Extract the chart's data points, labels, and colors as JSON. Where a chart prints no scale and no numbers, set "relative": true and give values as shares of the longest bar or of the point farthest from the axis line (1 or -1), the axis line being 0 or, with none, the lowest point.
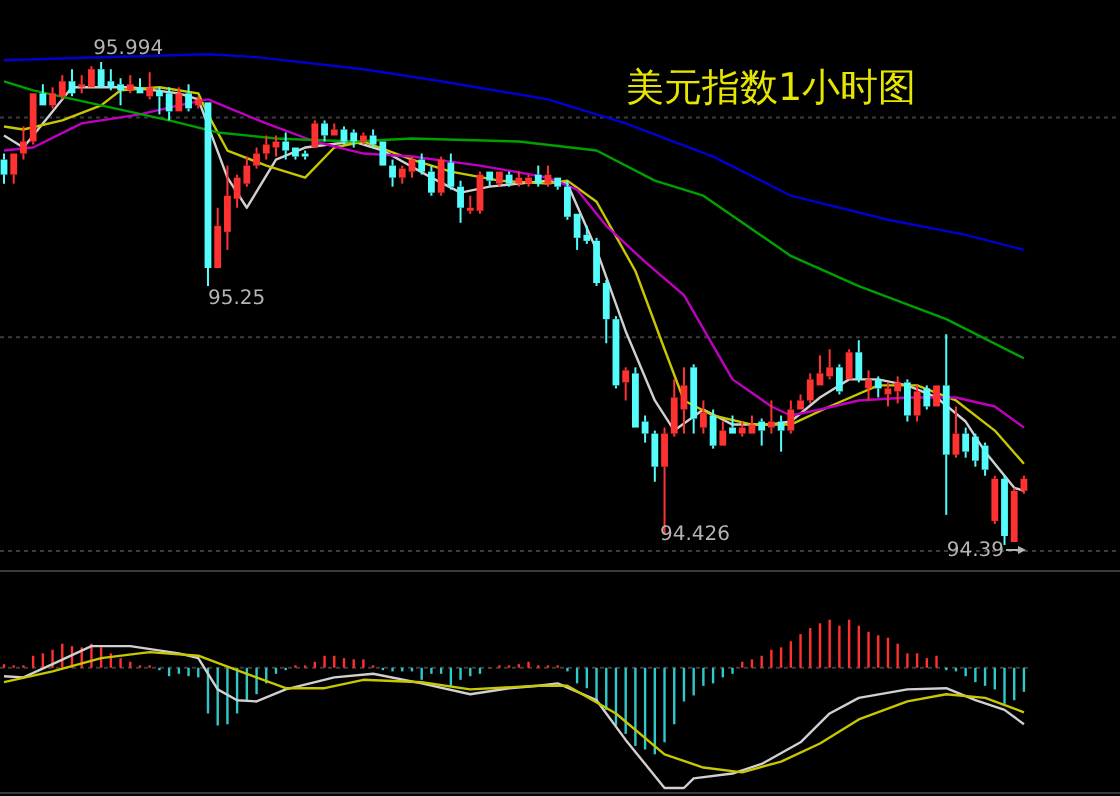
{
  "chart_data": [
    {
      "type": "candlestick",
      "title": "美元指数1小时图",
      "tick_labels": false,
      "grid": "y",
      "yticks": [
        {
          "value": 95.81,
          "label": null
        },
        {
          "value": 95.08,
          "label": null
        },
        {
          "value": 94.37,
          "label": null
        }
      ],
      "colors": [
        "#54fcfc",
        "#ff3232",
        "#ff3232",
        "#ff3232",
        "#54fcfc",
        "#ff3232",
        "#ff3232",
        "#54fcfc",
        "#ff3232",
        "#ff3232",
        "#54fcfc",
        "#54fcfc",
        "#54fcfc",
        "#ff3232",
        "#54fcfc",
        "#ff3232",
        "#54fcfc",
        "#54fcfc",
        "#ff3232",
        "#54fcfc",
        "#ff3232",
        "#54fcfc",
        "#ff3232",
        "#ff3232",
        "#ff3232",
        "#ff3232",
        "#ff3232",
        "#ff3232",
        "#ff3232",
        "#54fcfc",
        "#54fcfc",
        "#54fcfc",
        "#ff3232",
        "#54fcfc",
        "#ff3232",
        "#54fcfc",
        "#54fcfc",
        "#ff3232",
        "#54fcfc",
        "#54fcfc",
        "#54fcfc",
        "#ff3232",
        "#ff3232",
        "#54fcfc",
        "#54fcfc",
        "#ff3232",
        "#54fcfc",
        "#54fcfc",
        "#ff3232",
        "#ff3232",
        "#54fcfc",
        "#ff3232",
        "#54fcfc",
        "#ff3232",
        "#ff3232",
        "#54fcfc",
        "#ff3232",
        "#54fcfc",
        "#54fcfc",
        "#54fcfc",
        "#54fcfc",
        "#54fcfc",
        "#54fcfc",
        "#54fcfc",
        "#ff3232",
        "#54fcfc",
        "#54fcfc",
        "#54fcfc",
        "#ff3232",
        "#ff3232",
        "#ff3232",
        "#54fcfc",
        "#ff3232",
        "#54fcfc",
        "#ff3232",
        "#54fcfc",
        "#ff3232",
        "#ff3232",
        "#54fcfc",
        "#ff3232",
        "#54fcfc",
        "#ff3232",
        "#ff3232",
        "#ff3232",
        "#ff3232",
        "#ff3232",
        "#54fcfc",
        "#ff3232",
        "#54fcfc",
        "#ff3232",
        "#54fcfc",
        "#ff3232",
        "#ff3232",
        "#54fcfc",
        "#ff3232",
        "#54fcfc",
        "#ff3232",
        "#54fcfc",
        "#ff3232",
        "#54fcfc",
        "#54fcfc",
        "#54fcfc",
        "#ff3232",
        "#54fcfc",
        "#ff3232",
        "#ff3232"
      ],
      "categories": [
        null,
        null,
        null,
        null,
        null,
        null,
        null,
        null,
        null,
        null,
        null,
        null,
        null,
        null,
        null,
        null,
        null,
        null,
        null,
        null,
        null,
        null,
        null,
        null,
        null,
        null,
        null,
        null,
        null,
        null,
        null,
        null,
        null,
        null,
        null,
        null,
        null,
        null,
        null,
        null,
        null,
        null,
        null,
        null,
        null,
        null,
        null,
        null,
        null,
        null,
        null,
        null,
        null,
        null,
        null,
        null,
        null,
        null,
        null,
        null,
        null,
        null,
        null,
        null,
        null,
        null,
        null,
        null,
        null,
        null,
        null,
        null,
        null,
        null,
        null,
        null,
        null,
        null,
        null,
        null,
        null,
        null,
        null,
        null,
        null,
        null,
        null,
        null,
        null,
        null,
        null,
        null,
        null,
        null,
        null,
        null,
        null,
        null,
        null,
        null,
        null,
        null,
        null,
        null,
        null,
        null
      ],
      "ohlc": [
        [
          95.67,
          95.69,
          95.59,
          95.62
        ],
        [
          95.62,
          95.69,
          95.59,
          95.69
        ],
        [
          95.69,
          95.78,
          95.67,
          95.73
        ],
        [
          95.73,
          95.89,
          95.72,
          95.89
        ],
        [
          95.89,
          95.92,
          95.85,
          95.85
        ],
        [
          95.85,
          95.91,
          95.84,
          95.89
        ],
        [
          95.88,
          95.95,
          95.87,
          95.93
        ],
        [
          95.93,
          95.97,
          95.88,
          95.89
        ],
        [
          95.91,
          95.95,
          95.89,
          95.92
        ],
        [
          95.91,
          95.98,
          95.91,
          95.97
        ],
        [
          95.97,
          95.994,
          95.91,
          95.91
        ],
        [
          95.93,
          95.97,
          95.9,
          95.91
        ],
        [
          95.92,
          95.94,
          95.85,
          95.9
        ],
        [
          95.9,
          95.95,
          95.89,
          95.92
        ],
        [
          95.91,
          95.94,
          95.89,
          95.89
        ],
        [
          95.88,
          95.96,
          95.87,
          95.91
        ],
        [
          95.9,
          95.91,
          95.82,
          95.88
        ],
        [
          95.89,
          95.91,
          95.8,
          95.83
        ],
        [
          95.83,
          95.91,
          95.83,
          95.89
        ],
        [
          95.89,
          95.92,
          95.83,
          95.84
        ],
        [
          95.85,
          95.88,
          95.84,
          95.87
        ],
        [
          95.86,
          95.86,
          95.25,
          95.31
        ],
        [
          95.31,
          95.51,
          95.31,
          95.45
        ],
        [
          95.43,
          95.65,
          95.37,
          95.55
        ],
        [
          95.54,
          95.62,
          95.51,
          95.61
        ],
        [
          95.59,
          95.68,
          95.58,
          95.65
        ],
        [
          95.65,
          95.71,
          95.64,
          95.69
        ],
        [
          95.69,
          95.75,
          95.67,
          95.72
        ],
        [
          95.71,
          95.75,
          95.68,
          95.73
        ],
        [
          95.73,
          95.76,
          95.67,
          95.7
        ],
        [
          95.71,
          95.71,
          95.67,
          95.68
        ],
        [
          95.69,
          95.7,
          95.67,
          95.68
        ],
        [
          95.71,
          95.8,
          95.71,
          95.79
        ],
        [
          95.79,
          95.8,
          95.73,
          95.75
        ],
        [
          95.75,
          95.79,
          95.75,
          95.77
        ],
        [
          95.77,
          95.78,
          95.72,
          95.73
        ],
        [
          95.76,
          95.77,
          95.71,
          95.73
        ],
        [
          95.73,
          95.76,
          95.72,
          95.75
        ],
        [
          95.75,
          95.77,
          95.71,
          95.72
        ],
        [
          95.73,
          95.73,
          95.65,
          95.65
        ],
        [
          95.65,
          95.67,
          95.58,
          95.61
        ],
        [
          95.61,
          95.65,
          95.59,
          95.64
        ],
        [
          95.63,
          95.68,
          95.61,
          95.67
        ],
        [
          95.67,
          95.69,
          95.62,
          95.63
        ],
        [
          95.63,
          95.65,
          95.55,
          95.56
        ],
        [
          95.56,
          95.68,
          95.55,
          95.67
        ],
        [
          95.66,
          95.69,
          95.57,
          95.58
        ],
        [
          95.58,
          95.6,
          95.46,
          95.51
        ],
        [
          95.5,
          95.55,
          95.49,
          95.51
        ],
        [
          95.5,
          95.63,
          95.49,
          95.62
        ],
        [
          95.63,
          95.63,
          95.58,
          95.6
        ],
        [
          95.59,
          95.63,
          95.58,
          95.63
        ],
        [
          95.62,
          95.63,
          95.58,
          95.59
        ],
        [
          95.59,
          95.63,
          95.58,
          95.61
        ],
        [
          95.59,
          95.62,
          95.58,
          95.61
        ],
        [
          95.62,
          95.65,
          95.58,
          95.59
        ],
        [
          95.59,
          95.65,
          95.58,
          95.62
        ],
        [
          95.61,
          95.61,
          95.57,
          95.58
        ],
        [
          95.58,
          95.6,
          95.47,
          95.48
        ],
        [
          95.49,
          95.49,
          95.37,
          95.41
        ],
        [
          95.42,
          95.45,
          95.39,
          95.4
        ],
        [
          95.4,
          95.41,
          95.25,
          95.26
        ],
        [
          95.26,
          95.27,
          95.06,
          95.14
        ],
        [
          95.14,
          95.15,
          94.91,
          94.92
        ],
        [
          94.93,
          94.98,
          94.87,
          94.97
        ],
        [
          94.96,
          94.98,
          94.78,
          94.78
        ],
        [
          94.8,
          94.82,
          94.73,
          94.76
        ],
        [
          94.76,
          94.77,
          94.6,
          94.65
        ],
        [
          94.65,
          94.78,
          94.426,
          94.76
        ],
        [
          94.76,
          94.94,
          94.75,
          94.88
        ],
        [
          94.84,
          94.98,
          94.76,
          94.92
        ],
        [
          94.98,
          94.99,
          94.76,
          94.81
        ],
        [
          94.78,
          94.87,
          94.76,
          94.83
        ],
        [
          94.82,
          94.84,
          94.71,
          94.72
        ],
        [
          94.72,
          94.8,
          94.72,
          94.77
        ],
        [
          94.78,
          94.82,
          94.76,
          94.76
        ],
        [
          94.76,
          94.8,
          94.75,
          94.78
        ],
        [
          94.76,
          94.82,
          94.76,
          94.79
        ],
        [
          94.8,
          94.81,
          94.72,
          94.77
        ],
        [
          94.78,
          94.87,
          94.76,
          94.8
        ],
        [
          94.8,
          94.82,
          94.7,
          94.77
        ],
        [
          94.77,
          94.87,
          94.76,
          94.84
        ],
        [
          94.84,
          94.89,
          94.84,
          94.87
        ],
        [
          94.87,
          94.96,
          94.86,
          94.94
        ],
        [
          94.92,
          95.02,
          94.92,
          94.96
        ],
        [
          94.95,
          95.04,
          94.94,
          94.98
        ],
        [
          94.98,
          94.99,
          94.89,
          94.9
        ],
        [
          94.94,
          95.04,
          94.94,
          95.03
        ],
        [
          95.03,
          95.07,
          94.93,
          94.94
        ],
        [
          94.91,
          94.97,
          94.87,
          94.94
        ],
        [
          94.94,
          94.95,
          94.88,
          94.91
        ],
        [
          94.89,
          94.93,
          94.85,
          94.91
        ],
        [
          94.9,
          94.95,
          94.86,
          94.93
        ],
        [
          94.93,
          94.94,
          94.8,
          94.82
        ],
        [
          94.82,
          94.92,
          94.8,
          94.9
        ],
        [
          94.91,
          94.92,
          94.84,
          94.85
        ],
        [
          94.85,
          94.92,
          94.85,
          94.92
        ],
        [
          94.92,
          95.09,
          94.49,
          94.69
        ],
        [
          94.69,
          94.85,
          94.68,
          94.76
        ],
        [
          94.76,
          94.78,
          94.68,
          94.7
        ],
        [
          94.75,
          94.76,
          94.65,
          94.67
        ],
        [
          94.72,
          94.73,
          94.62,
          94.64
        ],
        [
          94.47,
          94.62,
          94.46,
          94.61
        ],
        [
          94.61,
          94.62,
          94.39,
          94.42
        ],
        [
          94.4,
          94.58,
          94.4,
          94.57
        ],
        [
          94.57,
          94.62,
          94.56,
          94.61
        ]
      ],
      "annotations": [
        {
          "text": "95.994",
          "y": 95.994
        },
        "95.25",
        "94.426",
        "94.39"
      ],
      "series": [
        {
          "type": "line",
          "color": "#d0d0d0",
          "values": [
            95.75,
            null,
            95.71,
            null,
            null,
            95.83,
            null,
            95.91,
            null,
            null,
            null,
            null,
            null,
            95.91,
            null,
            null,
            null,
            null,
            95.89,
            null,
            95.87,
            null,
            null,
            95.61,
            null,
            95.51,
            null,
            null,
            95.67,
            null,
            null,
            95.71,
            null,
            null,
            null,
            null,
            95.73,
            null,
            null,
            95.7,
            null,
            null,
            null,
            null,
            95.61,
            null,
            null,
            95.56,
            null,
            null,
            95.58,
            null,
            null,
            null,
            null,
            null,
            95.6,
            null,
            95.59,
            null,
            null,
            95.37,
            null,
            null,
            95.1,
            null,
            null,
            94.87,
            null,
            94.77,
            null,
            null,
            94.84,
            null,
            null,
            94.79,
            null,
            null,
            null,
            94.79,
            null,
            94.8,
            null,
            null,
            94.88,
            null,
            null,
            94.94,
            null,
            null,
            94.94,
            null,
            null,
            94.92,
            null,
            null,
            94.88,
            null,
            null,
            94.8,
            null,
            94.7,
            null,
            null,
            94.58,
            94.57
          ]
        },
        {
          "type": "line",
          "color": "#c8c800",
          "values": [
            95.78,
            null,
            95.77,
            null,
            null,
            null,
            95.8,
            null,
            null,
            null,
            95.85,
            null,
            95.9,
            null,
            null,
            null,
            95.91,
            null,
            null,
            null,
            95.89,
            95.82,
            null,
            95.7,
            null,
            null,
            null,
            95.65,
            null,
            null,
            null,
            95.61,
            null,
            null,
            95.71,
            null,
            null,
            95.73,
            null,
            null,
            null,
            null,
            95.67,
            null,
            null,
            null,
            95.63,
            null,
            null,
            null,
            null,
            95.6,
            null,
            null,
            null,
            null,
            95.59,
            null,
            95.6,
            null,
            null,
            95.53,
            null,
            null,
            null,
            95.3,
            null,
            null,
            95.04,
            null,
            94.87,
            null,
            null,
            94.82,
            null,
            null,
            null,
            94.79,
            null,
            null,
            null,
            94.79,
            null,
            null,
            null,
            94.85,
            null,
            null,
            null,
            null,
            94.92,
            null,
            null,
            null,
            94.92,
            null,
            null,
            null,
            94.87,
            null,
            null,
            null,
            94.77,
            null,
            null,
            94.66
          ]
        },
        {
          "type": "line",
          "color": "#c000c0",
          "values": [
            95.7,
            null,
            null,
            95.71,
            null,
            null,
            null,
            null,
            95.79,
            null,
            null,
            null,
            null,
            null,
            95.82,
            null,
            null,
            null,
            95.85,
            null,
            null,
            95.87,
            null,
            null,
            null,
            null,
            null,
            95.79,
            null,
            null,
            null,
            null,
            95.73,
            null,
            null,
            null,
            null,
            95.69,
            null,
            null,
            null,
            null,
            95.68,
            null,
            null,
            null,
            null,
            null,
            null,
            95.65,
            null,
            null,
            null,
            null,
            null,
            null,
            95.61,
            null,
            null,
            95.57,
            null,
            null,
            95.45,
            null,
            null,
            null,
            95.33,
            null,
            null,
            null,
            95.22,
            null,
            null,
            null,
            null,
            94.94,
            null,
            null,
            null,
            94.85,
            null,
            94.82,
            null,
            null,
            94.84,
            null,
            null,
            null,
            94.87,
            null,
            null,
            null,
            null,
            94.88,
            null,
            null,
            null,
            null,
            94.88,
            null,
            null,
            null,
            94.85,
            null,
            null,
            94.78
          ]
        },
        {
          "type": "line",
          "color": "#00a000",
          "values": [
            95.93,
            null,
            null,
            95.9,
            null,
            null,
            null,
            null,
            null,
            null,
            95.85,
            null,
            null,
            null,
            null,
            null,
            null,
            95.8,
            null,
            null,
            null,
            null,
            95.76,
            null,
            null,
            null,
            null,
            null,
            95.74,
            null,
            null,
            null,
            null,
            null,
            null,
            null,
            95.73,
            null,
            null,
            null,
            null,
            null,
            95.74,
            null,
            null,
            null,
            null,
            null,
            null,
            null,
            null,
            null,
            null,
            95.73,
            null,
            null,
            null,
            null,
            null,
            null,
            null,
            95.7,
            null,
            null,
            null,
            null,
            null,
            95.6,
            null,
            null,
            null,
            null,
            95.55,
            null,
            null,
            null,
            null,
            null,
            null,
            null,
            null,
            95.35,
            null,
            null,
            null,
            null,
            null,
            null,
            95.25,
            null,
            null,
            null,
            null,
            null,
            null,
            null,
            null,
            95.14,
            null,
            null,
            null,
            null,
            null,
            null,
            null,
            95.01
          ]
        },
        {
          "type": "line",
          "color": "#0000d0",
          "values": [
            96.0,
            null,
            null,
            null,
            null,
            null,
            null,
            null,
            null,
            null,
            96.01,
            null,
            null,
            null,
            null,
            null,
            null,
            null,
            null,
            null,
            null,
            96.02,
            null,
            null,
            null,
            null,
            96.01,
            null,
            null,
            null,
            null,
            null,
            null,
            null,
            null,
            null,
            null,
            95.97,
            null,
            null,
            null,
            null,
            null,
            null,
            null,
            95.93,
            null,
            null,
            null,
            null,
            null,
            null,
            null,
            null,
            null,
            null,
            95.87,
            null,
            null,
            null,
            null,
            null,
            null,
            null,
            95.79,
            null,
            null,
            null,
            null,
            null,
            null,
            null,
            null,
            95.68,
            null,
            null,
            null,
            null,
            null,
            null,
            null,
            95.55,
            null,
            null,
            null,
            null,
            null,
            null,
            null,
            null,
            null,
            95.47,
            null,
            null,
            null,
            null,
            null,
            null,
            null,
            95.42,
            null,
            null,
            null,
            null,
            null,
            95.37
          ]
        }
      ]
    },
    {
      "type": "bar",
      "relative": true,
      "ref_lines": [
        {
          "axis": "y",
          "value": 0,
          "color": "#3c3c3c",
          "line_style": "dotted"
        }
      ],
      "categories": [
        null,
        null,
        null,
        null,
        null,
        null,
        null,
        null,
        null,
        null,
        null,
        null,
        null,
        null,
        null,
        null,
        null,
        null,
        null,
        null,
        null,
        null,
        null,
        null,
        null,
        null,
        null,
        null,
        null,
        null,
        null,
        null,
        null,
        null,
        null,
        null,
        null,
        null,
        null,
        null,
        null,
        null,
        null,
        null,
        null,
        null,
        null,
        null,
        null,
        null,
        null,
        null,
        null,
        null,
        null,
        null,
        null,
        null,
        null,
        null,
        null,
        null,
        null,
        null,
        null,
        null,
        null,
        null,
        null,
        null,
        null,
        null,
        null,
        null,
        null,
        null,
        null,
        null,
        null,
        null,
        null,
        null,
        null,
        null,
        null,
        null,
        null,
        null,
        null,
        null,
        null,
        null,
        null,
        null,
        null,
        null,
        null,
        null,
        null,
        null,
        null,
        null,
        null,
        null,
        null,
        null
      ],
      "series": [
        {
          "type": "bar",
          "colors": [
            "#ff3030",
            "#ff3030",
            "#ff3030",
            "#ff3030",
            "#ff3030",
            "#ff3030",
            "#ff3030",
            "#ff3030",
            "#ff3030",
            "#ff3030",
            "#ff3030",
            "#ff3030",
            "#ff3030",
            "#ff3030",
            "#ff3030",
            "#ff3030",
            "#30c8c8",
            "#30c8c8",
            "#30c8c8",
            "#30c8c8",
            "#30c8c8",
            "#30c8c8",
            "#30c8c8",
            "#30c8c8",
            "#30c8c8",
            "#30c8c8",
            "#30c8c8",
            "#30c8c8",
            "#30c8c8",
            "#30c8c8",
            "#ff3030",
            "#ff3030",
            "#ff3030",
            "#ff3030",
            "#ff3030",
            "#ff3030",
            "#ff3030",
            "#ff3030",
            "#ff3030",
            "#30c8c8",
            "#30c8c8",
            "#30c8c8",
            "#30c8c8",
            "#30c8c8",
            "#30c8c8",
            "#30c8c8",
            "#30c8c8",
            "#30c8c8",
            "#30c8c8",
            "#30c8c8",
            "#ff3030",
            "#ff3030",
            "#ff3030",
            "#ff3030",
            "#ff3030",
            "#ff3030",
            "#ff3030",
            "#ff3030",
            "#30c8c8",
            "#30c8c8",
            "#30c8c8",
            "#30c8c8",
            "#30c8c8",
            "#30c8c8",
            "#30c8c8",
            "#30c8c8",
            "#30c8c8",
            "#30c8c8",
            "#30c8c8",
            "#30c8c8",
            "#30c8c8",
            "#30c8c8",
            "#30c8c8",
            "#30c8c8",
            "#30c8c8",
            "#30c8c8",
            "#ff3030",
            "#ff3030",
            "#ff3030",
            "#ff3030",
            "#ff3030",
            "#ff3030",
            "#ff3030",
            "#ff3030",
            "#ff3030",
            "#ff3030",
            "#ff3030",
            "#ff3030",
            "#ff3030",
            "#ff3030",
            "#ff3030",
            "#ff3030",
            "#ff3030",
            "#ff3030",
            "#ff3030",
            "#ff3030",
            "#ff3030",
            "#30c8c8",
            "#30c8c8",
            "#30c8c8",
            "#30c8c8",
            "#30c8c8",
            "#30c8c8",
            "#30c8c8",
            "#30c8c8",
            "#30c8c8"
          ],
          "values": [
            0.03,
            0.02,
            0.02,
            0.1,
            0.12,
            0.15,
            0.2,
            0.18,
            0.17,
            0.2,
            0.17,
            0.12,
            0.08,
            0.05,
            0.02,
            0.02,
            -0.02,
            -0.07,
            -0.05,
            -0.07,
            -0.08,
            -0.38,
            -0.48,
            -0.47,
            -0.38,
            -0.27,
            -0.22,
            -0.13,
            -0.05,
            -0.02,
            0.02,
            0.02,
            0.05,
            0.1,
            0.1,
            0.08,
            0.07,
            0.07,
            0.02,
            -0.02,
            -0.03,
            -0.03,
            -0.03,
            -0.1,
            -0.05,
            -0.05,
            -0.15,
            -0.1,
            -0.07,
            -0.05,
            0,
            0.02,
            0.02,
            0.03,
            0.05,
            0.02,
            0.02,
            0.02,
            -0.03,
            -0.13,
            -0.17,
            -0.28,
            -0.35,
            -0.48,
            -0.55,
            -0.65,
            -0.68,
            -0.72,
            -0.62,
            -0.47,
            -0.28,
            -0.23,
            -0.15,
            -0.13,
            -0.08,
            -0.05,
            0.05,
            0.07,
            0.1,
            0.15,
            0.17,
            0.22,
            0.28,
            0.33,
            0.37,
            0.4,
            0.35,
            0.4,
            0.35,
            0.3,
            0.27,
            0.25,
            0.2,
            0.12,
            0.12,
            0.08,
            0.1,
            -0.02,
            -0.03,
            -0.07,
            -0.12,
            -0.15,
            -0.18,
            -0.3,
            -0.27,
            -0.2
          ]
        },
        {
          "type": "line",
          "color": "#d0d0d0",
          "values": [
            -0.07,
            null,
            -0.08,
            null,
            null,
            0.03,
            null,
            null,
            null,
            0.18,
            null,
            null,
            null,
            0.18,
            null,
            null,
            null,
            null,
            0.12,
            null,
            0.08,
            null,
            -0.18,
            null,
            -0.27,
            null,
            -0.28,
            null,
            null,
            -0.18,
            null,
            null,
            null,
            null,
            -0.08,
            null,
            null,
            null,
            -0.05,
            null,
            null,
            null,
            null,
            -0.13,
            null,
            null,
            null,
            null,
            -0.22,
            null,
            null,
            null,
            -0.17,
            null,
            null,
            -0.15,
            null,
            -0.13,
            null,
            null,
            null,
            -0.27,
            null,
            null,
            -0.6,
            null,
            null,
            null,
            -1,
            null,
            -1,
            -0.92,
            null,
            null,
            null,
            -0.88,
            null,
            null,
            -0.8,
            null,
            null,
            null,
            -0.62,
            null,
            null,
            -0.38,
            null,
            null,
            -0.25,
            null,
            null,
            null,
            null,
            -0.18,
            null,
            null,
            null,
            -0.17,
            null,
            null,
            -0.27,
            null,
            null,
            -0.35,
            null,
            -0.47
          ]
        },
        {
          "type": "line",
          "color": "#c8c800",
          "values": [
            -0.12,
            null,
            null,
            null,
            null,
            -0.03,
            null,
            null,
            null,
            null,
            0.08,
            null,
            null,
            null,
            null,
            0.13,
            null,
            null,
            null,
            null,
            0.1,
            null,
            null,
            null,
            null,
            -0.05,
            null,
            null,
            null,
            -0.17,
            null,
            null,
            null,
            -0.17,
            null,
            null,
            null,
            -0.1,
            null,
            null,
            null,
            null,
            null,
            -0.12,
            null,
            null,
            null,
            null,
            -0.18,
            null,
            null,
            null,
            null,
            null,
            null,
            -0.15,
            null,
            null,
            -0.15,
            null,
            null,
            null,
            null,
            -0.38,
            null,
            null,
            null,
            null,
            -0.72,
            null,
            null,
            null,
            -0.83,
            null,
            null,
            null,
            -0.87,
            null,
            null,
            null,
            -0.78,
            null,
            null,
            null,
            -0.63,
            null,
            null,
            null,
            -0.43,
            null,
            null,
            null,
            null,
            -0.28,
            null,
            null,
            null,
            -0.22,
            null,
            null,
            null,
            -0.25,
            null,
            null,
            null,
            -0.37
          ]
        }
      ]
    }
  ]
}
